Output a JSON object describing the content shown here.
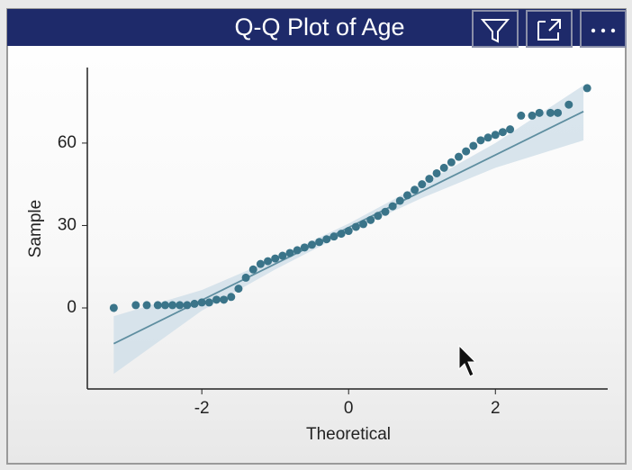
{
  "chart_data": {
    "type": "scatter",
    "title": "Q-Q Plot of Age",
    "xlabel": "Theoretical",
    "ylabel": "Sample",
    "xlim": [
      -3.56,
      3.53
    ],
    "ylim": [
      -29.5,
      87.5
    ],
    "xticks": [
      -2,
      0,
      2
    ],
    "yticks": [
      0,
      30,
      60
    ],
    "color": "#3a7489",
    "x": [
      -3.2,
      -2.9,
      -2.75,
      -2.6,
      -2.5,
      -2.4,
      -2.3,
      -2.2,
      -2.1,
      -2.0,
      -1.9,
      -1.8,
      -1.7,
      -1.6,
      -1.5,
      -1.4,
      -1.3,
      -1.2,
      -1.1,
      -1.0,
      -0.9,
      -0.8,
      -0.7,
      -0.6,
      -0.5,
      -0.4,
      -0.3,
      -0.2,
      -0.1,
      0,
      0.1,
      0.2,
      0.3,
      0.4,
      0.5,
      0.6,
      0.7,
      0.8,
      0.9,
      1.0,
      1.1,
      1.2,
      1.3,
      1.4,
      1.5,
      1.6,
      1.7,
      1.8,
      1.9,
      2.0,
      2.1,
      2.2,
      2.35,
      2.5,
      2.6,
      2.75,
      2.85,
      3.0,
      3.25
    ],
    "values": [
      0,
      1,
      1,
      1,
      1,
      1,
      1,
      1,
      1.5,
      2,
      2,
      3,
      3,
      4,
      7,
      11,
      14,
      16,
      17,
      18,
      19,
      20,
      21,
      22,
      23,
      24,
      25,
      26,
      27,
      28,
      29.5,
      30.5,
      32,
      33.5,
      35,
      37,
      39,
      41,
      43,
      45,
      47,
      49,
      51,
      53,
      55,
      57,
      59,
      61,
      62,
      63,
      64,
      65,
      70,
      70,
      71,
      71,
      71,
      74,
      80
    ],
    "fit_line": {
      "color": "#5e8ea0",
      "x": [
        -3.2,
        3.2
      ],
      "values": [
        -13,
        71.5
      ]
    },
    "band": {
      "color": "#cfdfe8",
      "x": [
        -3.2,
        -2,
        -1,
        0,
        1,
        2,
        3.2
      ],
      "lower": [
        -24,
        -1,
        14,
        27.7,
        40,
        51,
        61
      ],
      "upper": [
        -3,
        6.5,
        18,
        30.7,
        45,
        60,
        81
      ]
    }
  }
}
